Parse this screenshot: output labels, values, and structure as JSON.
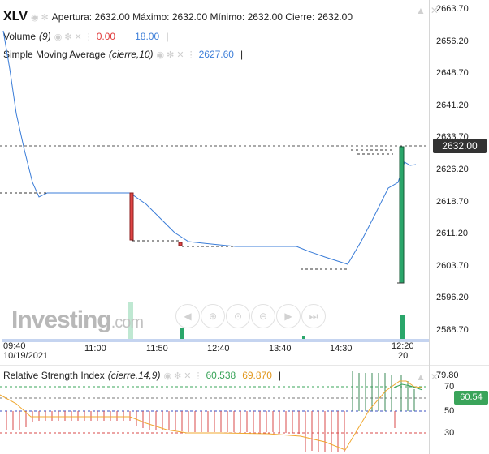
{
  "header": {
    "symbol": "XLV",
    "ohlc": "Apertura: 2632.00 Máximo: 2632.00 Mínimo: 2632.00 Cierre: 2632.00",
    "volume_label": "Volume",
    "volume_param": "(9)",
    "volume_value_red": "0.00",
    "volume_value_blue": "18.00",
    "sma_label": "Simple Moving Average",
    "sma_param": "(cierre,10)",
    "sma_value": "2627.60",
    "separator": "|"
  },
  "price_axis": {
    "ticks": [
      "2663.70",
      "2656.20",
      "2648.70",
      "2641.20",
      "2633.70",
      "2626.20",
      "2618.70",
      "2611.20",
      "2603.70",
      "2596.20",
      "2588.70"
    ],
    "current_price": "2632.00"
  },
  "time_axis": {
    "ticks": [
      "09:40",
      "11:00",
      "11:50",
      "12:40",
      "13:40",
      "14:30",
      "12:20"
    ],
    "date_left": "10/19/2021",
    "date_right": "20"
  },
  "watermark": {
    "brand": "Investing",
    "suffix": ".com"
  },
  "zoom_controls": [
    "arrow-left-icon",
    "zoom-in-icon",
    "zoom-reset-icon",
    "zoom-out-icon",
    "arrow-right-icon",
    "arrow-right-end-icon"
  ],
  "rsi": {
    "label": "Relative Strength Index",
    "param": "(cierre,14,9)",
    "value1": "60.538",
    "value2": "69.870",
    "separator": "|",
    "ticks": [
      "79.80",
      "70",
      "50",
      "30"
    ],
    "current": "60.54"
  },
  "colors": {
    "price_line": "#3b7dd8",
    "candle_up": "#2aa66a",
    "candle_down": "#e04545",
    "rsi_line": "#f0a830",
    "rsi_signal": "#3aa45a",
    "rsi_bars_down": "#d84a4a",
    "rsi_bars_up": "#3a8a55"
  }
}
